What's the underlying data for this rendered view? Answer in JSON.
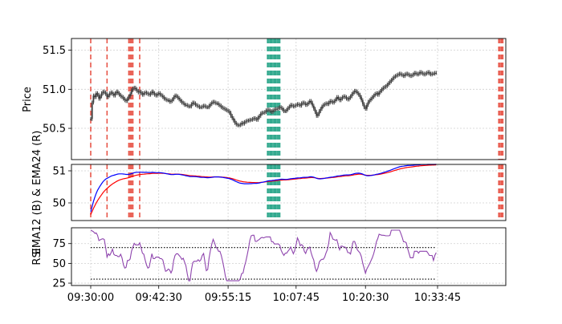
{
  "colors": {
    "price": "#3c3c3c",
    "ema12": "#0000ff",
    "ema24": "#ff0000",
    "rsi": "#8e44ad",
    "marker_red": "#e8574a",
    "marker_teal": "#2aa68a",
    "threshold": "#000000"
  },
  "chart_data": [
    {
      "type": "line",
      "panel": "price",
      "ylabel": "Price",
      "x_ticks": [],
      "y_ticks": [
        "50.5",
        "51.0",
        "51.5"
      ],
      "ylim": [
        50.1,
        51.65
      ],
      "grid": true,
      "x_start": "09:30:00",
      "x_end": "10:43:30",
      "x_step_seconds": 15,
      "series": [
        {
          "values": [
            50.62,
            50.83,
            50.92,
            50.9,
            50.95,
            50.93,
            50.88,
            50.91,
            50.95,
            50.97,
            50.96,
            50.94,
            50.9,
            50.92,
            50.95,
            50.96,
            50.94,
            50.92,
            50.95,
            50.97,
            50.95,
            50.93,
            50.91,
            50.9,
            50.88,
            50.86,
            50.85,
            50.88,
            50.91,
            50.94,
            50.99,
            51.01,
            51.02,
            51.0,
            50.98,
            50.96,
            50.97,
            50.95,
            50.93,
            50.95,
            50.96,
            50.95,
            50.94,
            50.93,
            50.95,
            50.97,
            50.95,
            50.93,
            50.92,
            50.94,
            50.95,
            50.93,
            50.92,
            50.9,
            50.88,
            50.87,
            50.86,
            50.86,
            50.84,
            50.85,
            50.87,
            50.9,
            50.92,
            50.91,
            50.89,
            50.87,
            50.85,
            50.83,
            50.82,
            50.8,
            50.8,
            50.79,
            50.78,
            50.78,
            50.81,
            50.83,
            50.82,
            50.8,
            50.79,
            50.78,
            50.77,
            50.77,
            50.78,
            50.79,
            50.78,
            50.77,
            50.77,
            50.79,
            50.81,
            50.83,
            50.84,
            50.83,
            50.82,
            50.82,
            50.8,
            50.79,
            50.77,
            50.76,
            50.75,
            50.74,
            50.73,
            50.72,
            50.7,
            50.66,
            50.63,
            50.6,
            50.57,
            50.55,
            50.54,
            50.54,
            50.55,
            50.57,
            50.56,
            50.58,
            50.59,
            50.6,
            50.6,
            50.61,
            50.61,
            50.62,
            50.63,
            50.62,
            50.61,
            50.64,
            50.66,
            50.69,
            50.7,
            50.7,
            50.71,
            50.73,
            50.74,
            50.73,
            50.72,
            50.71,
            50.73,
            50.74,
            50.75,
            50.75,
            50.76,
            50.77,
            50.76,
            50.74,
            50.72,
            50.72,
            50.74,
            50.76,
            50.78,
            50.8,
            50.79,
            50.78,
            50.79,
            50.8,
            50.81,
            50.8,
            50.79,
            50.82,
            50.83,
            50.82,
            50.8,
            50.81,
            50.83,
            50.85,
            50.83,
            50.79,
            50.75,
            50.71,
            50.66,
            50.68,
            50.72,
            50.75,
            50.78,
            50.8,
            50.81,
            50.82,
            50.81,
            50.83,
            50.85,
            50.84,
            50.83,
            50.85,
            50.87,
            50.9,
            50.88,
            50.86,
            50.88,
            50.9,
            50.91,
            50.9,
            50.88,
            50.87,
            50.89,
            50.91,
            50.94,
            50.96,
            50.98,
            50.97,
            50.95,
            50.93,
            50.9,
            50.86,
            50.81,
            50.77,
            50.75,
            50.8,
            50.84,
            50.86,
            50.88,
            50.9,
            50.92,
            50.94,
            50.95,
            50.93,
            50.96,
            50.98,
            51.0,
            51.02,
            51.03,
            51.04,
            51.06,
            51.08,
            51.1,
            51.12,
            51.14,
            51.16,
            51.17,
            51.18,
            51.19,
            51.2,
            51.19,
            51.18,
            51.17,
            51.19,
            51.2,
            51.19,
            51.18,
            51.17,
            51.18,
            51.19,
            51.21,
            51.2,
            51.19,
            51.2,
            51.22,
            51.21,
            51.2,
            51.19,
            51.2,
            51.21,
            51.22,
            51.2,
            51.19,
            51.2,
            51.2,
            51.21,
            51.21
          ]
        }
      ]
    },
    {
      "type": "line",
      "panel": "ema",
      "ylabel": "EMA12 (B) & EMA24 (R)",
      "y_ticks": [
        "50",
        "51"
      ],
      "ylim": [
        49.45,
        51.2
      ],
      "grid": true,
      "series": [
        {
          "name": "EMA12",
          "color": "blue",
          "derived_from": "price",
          "period": 12
        },
        {
          "name": "EMA24",
          "color": "red",
          "derived_from": "price",
          "period": 24
        }
      ]
    },
    {
      "type": "line",
      "panel": "rsi",
      "ylabel": "RSI",
      "y_ticks": [
        "25",
        "50",
        "75"
      ],
      "ylim": [
        22,
        95
      ],
      "grid": true,
      "thresholds": [
        70,
        30
      ],
      "series": [
        {
          "name": "RSI",
          "derived_from": "price",
          "display_range": [
            28,
            92
          ]
        }
      ],
      "x_ticks": [
        "09:30:00",
        "09:42:30",
        "09:55:15",
        "10:07:45",
        "10:20:30",
        "10:33:45"
      ]
    }
  ],
  "markers": {
    "red_dashed_single": [
      "09:30:00",
      "09:33:00",
      "09:39:00"
    ],
    "red_dashed_cluster": [
      {
        "from": "09:37:00",
        "to": "09:37:45"
      },
      {
        "from": "10:45:00",
        "to": "10:45:45"
      }
    ],
    "teal_dashed_cluster": [
      {
        "from": "10:02:30",
        "to": "10:04:45"
      }
    ]
  }
}
